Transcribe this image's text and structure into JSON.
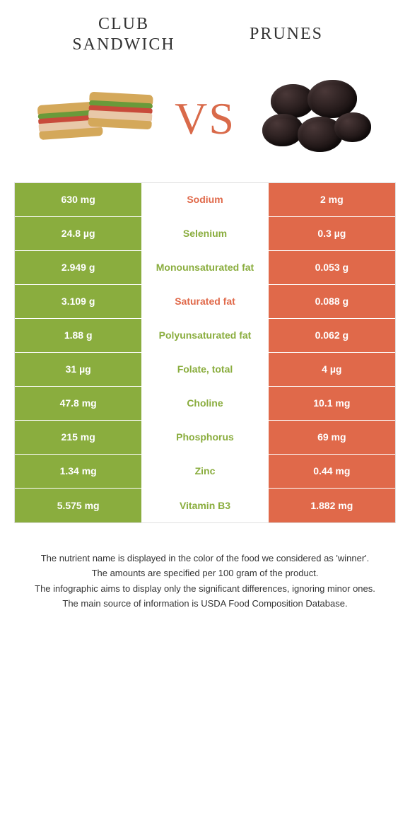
{
  "colors": {
    "green": "#8aad3e",
    "orange": "#e0694a",
    "text_dark": "#333333",
    "white": "#ffffff"
  },
  "header": {
    "left_title_line1": "CLUB",
    "left_title_line2": "SANDWICH",
    "right_title": "PRUNES",
    "vs_label": "VS"
  },
  "rows": [
    {
      "left": "630 mg",
      "label": "Sodium",
      "right": "2 mg",
      "winner": "orange"
    },
    {
      "left": "24.8 µg",
      "label": "Selenium",
      "right": "0.3 µg",
      "winner": "green"
    },
    {
      "left": "2.949 g",
      "label": "Monounsaturated fat",
      "right": "0.053 g",
      "winner": "green"
    },
    {
      "left": "3.109 g",
      "label": "Saturated fat",
      "right": "0.088 g",
      "winner": "orange"
    },
    {
      "left": "1.88 g",
      "label": "Polyunsaturated fat",
      "right": "0.062 g",
      "winner": "green"
    },
    {
      "left": "31 µg",
      "label": "Folate, total",
      "right": "4 µg",
      "winner": "green"
    },
    {
      "left": "47.8 mg",
      "label": "Choline",
      "right": "10.1 mg",
      "winner": "green"
    },
    {
      "left": "215 mg",
      "label": "Phosphorus",
      "right": "69 mg",
      "winner": "green"
    },
    {
      "left": "1.34 mg",
      "label": "Zinc",
      "right": "0.44 mg",
      "winner": "green"
    },
    {
      "left": "5.575 mg",
      "label": "Vitamin B3",
      "right": "1.882 mg",
      "winner": "green"
    }
  ],
  "footer": {
    "line1": "The nutrient name is displayed in the color of the food we considered as 'winner'.",
    "line2": "The amounts are specified per 100 gram of the product.",
    "line3": "The infographic aims to display only the significant differences, ignoring minor ones.",
    "line4": "The main source of information is USDA Food Composition Database."
  }
}
